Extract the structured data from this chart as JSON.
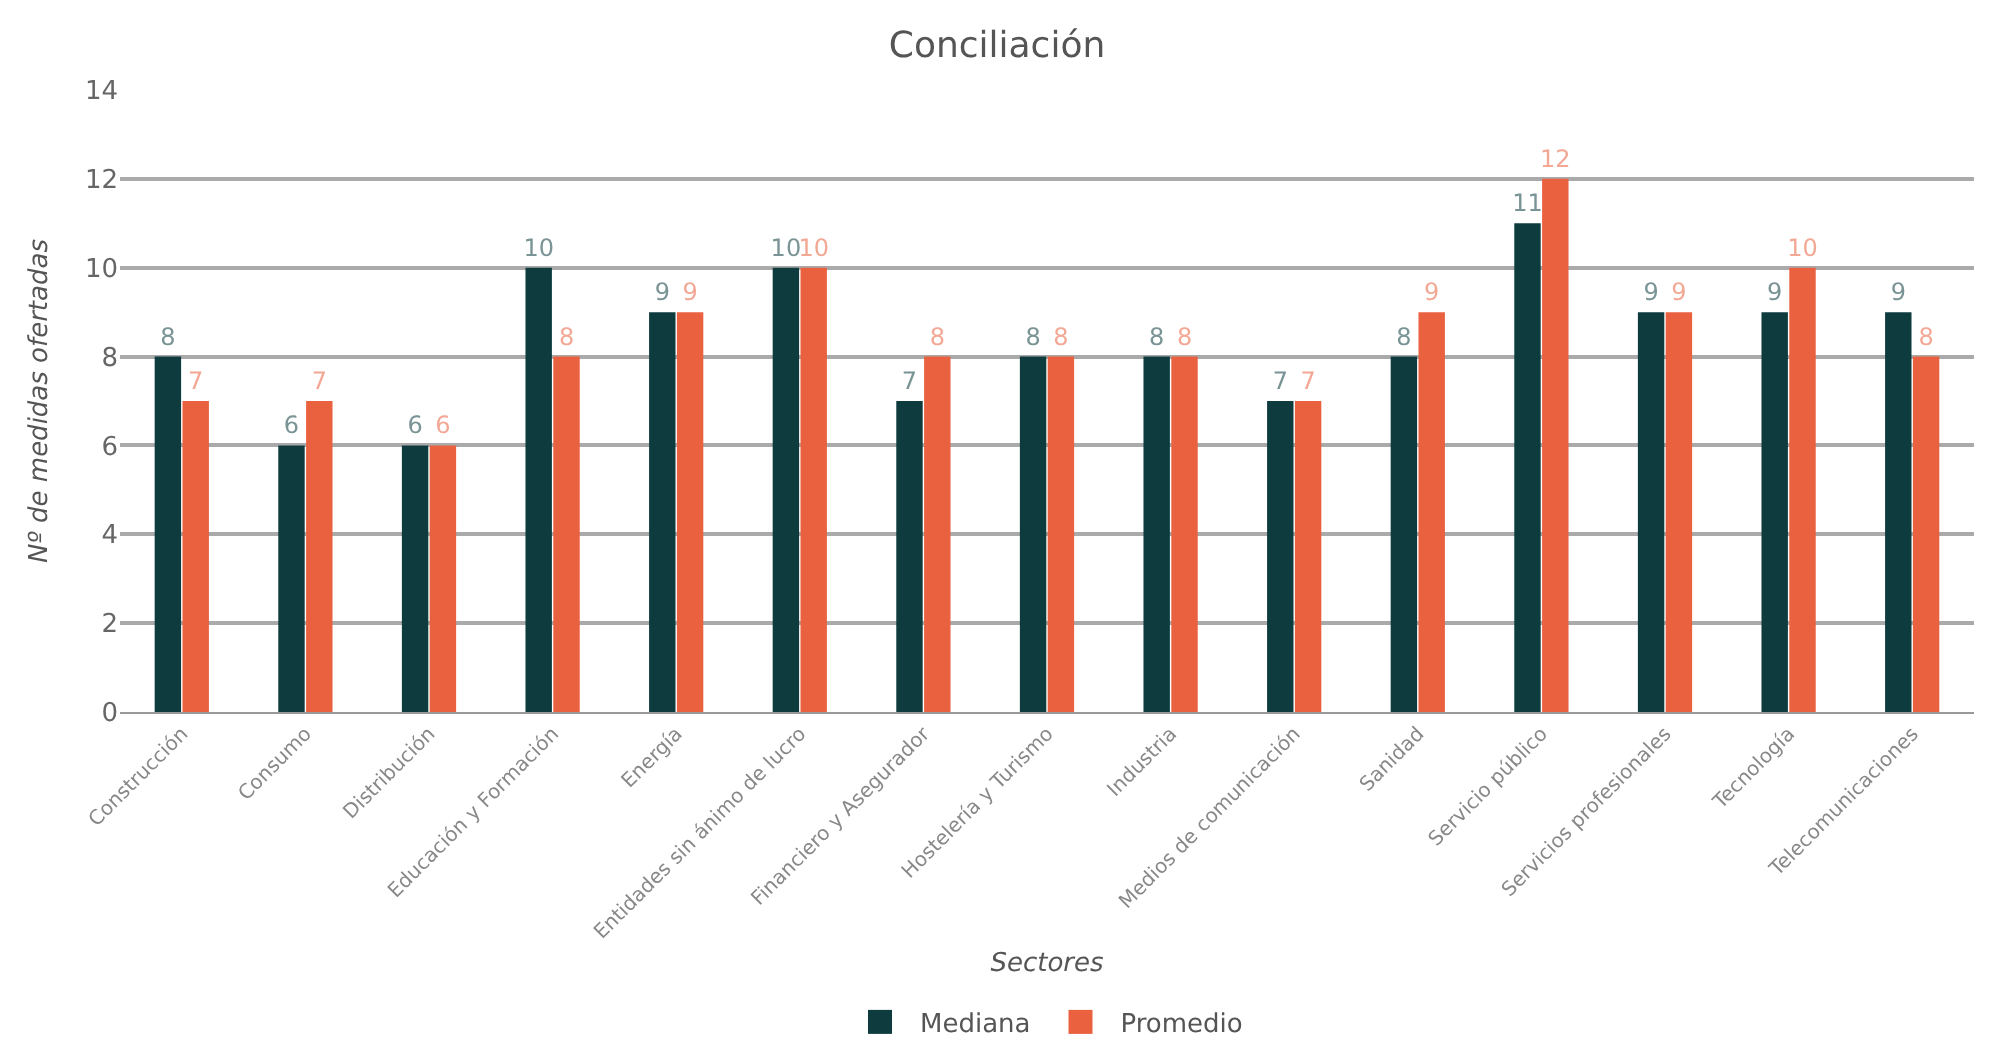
{
  "chart_data": {
    "type": "bar",
    "title": "Conciliación",
    "xlabel": "Sectores",
    "ylabel": "Nº de medidas ofertadas",
    "categories": [
      "Construcción",
      "Consumo",
      "Distribución",
      "Educación y Formación",
      "Energía",
      "Entidades sin ánimo de lucro",
      "Financiero y Asegurador",
      "Hostelería y Turismo",
      "Industria",
      "Medios de comunicación",
      "Sanidad",
      "Servicio público",
      "Servicios profesionales",
      "Tecnología",
      "Telecomunicaciones"
    ],
    "series": [
      {
        "name": "Mediana",
        "color": "#0e3b3e",
        "values": [
          8,
          6,
          6,
          10,
          9,
          10,
          7,
          8,
          8,
          7,
          8,
          11,
          9,
          9,
          9
        ]
      },
      {
        "name": "Promedio",
        "color": "#ea6140",
        "values": [
          7,
          7,
          6,
          8,
          9,
          10,
          8,
          8,
          8,
          7,
          9,
          12,
          9,
          10,
          8
        ]
      }
    ],
    "ylim": [
      0,
      14
    ],
    "yticks": [
      0,
      2,
      4,
      6,
      8,
      10,
      12,
      14
    ],
    "grid": "y",
    "legend": "bottom",
    "data_labels": true
  }
}
